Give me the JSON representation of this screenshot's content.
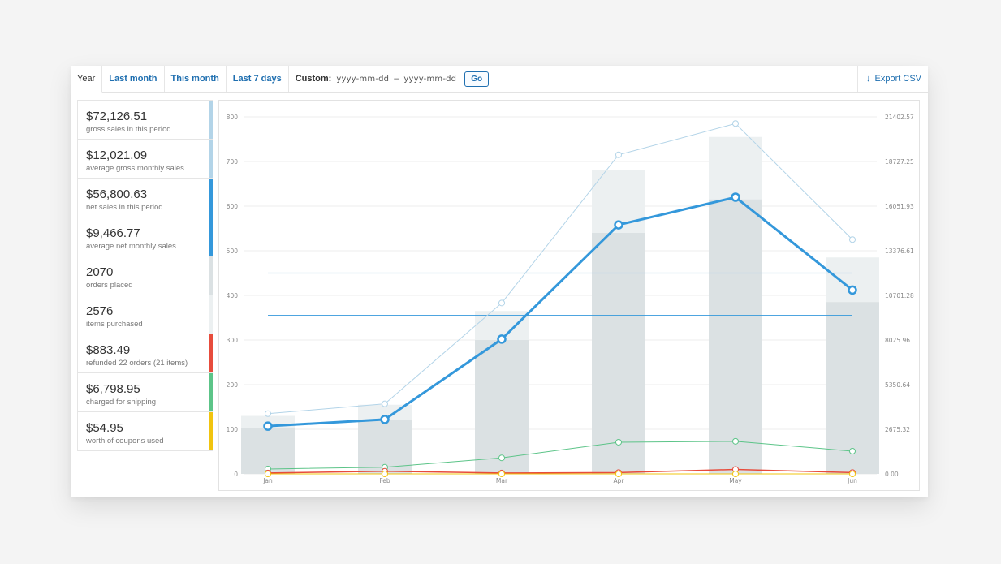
{
  "toolbar": {
    "tabs": [
      {
        "label": "Year",
        "active": true
      },
      {
        "label": "Last month",
        "active": false
      },
      {
        "label": "This month",
        "active": false
      },
      {
        "label": "Last 7 days",
        "active": false
      }
    ],
    "custom_label": "Custom:",
    "start_placeholder": "yyyy-mm-dd",
    "separator": "–",
    "end_placeholder": "yyyy-mm-dd",
    "go_label": "Go",
    "export_label": "Export CSV"
  },
  "legend": [
    {
      "amount": "$72,126.51",
      "desc": "gross sales in this period",
      "color": "#b3d4e8"
    },
    {
      "amount": "$12,021.09",
      "desc": "average gross monthly sales",
      "color": "#b3d4e8"
    },
    {
      "amount": "$56,800.63",
      "desc": "net sales in this period",
      "color": "#3498db"
    },
    {
      "amount": "$9,466.77",
      "desc": "average net monthly sales",
      "color": "#3498db"
    },
    {
      "amount": "2070",
      "desc": "orders placed",
      "color": "#dbe1e3"
    },
    {
      "amount": "2576",
      "desc": "items purchased",
      "color": "#ecf0f1"
    },
    {
      "amount": "$883.49",
      "desc": "refunded 22 orders (21 items)",
      "color": "#e74c3c"
    },
    {
      "amount": "$6,798.95",
      "desc": "charged for shipping",
      "color": "#5cc488"
    },
    {
      "amount": "$54.95",
      "desc": "worth of coupons used",
      "color": "#f1c40f"
    }
  ],
  "chart_data": {
    "type": "bar",
    "categories": [
      "Jan",
      "Feb",
      "Mar",
      "Apr",
      "May",
      "Jun"
    ],
    "y_left_ticks": [
      "0",
      "100",
      "200",
      "300",
      "400",
      "500",
      "600",
      "700",
      "800"
    ],
    "y_right_ticks": [
      "0.00",
      "2675.32",
      "5350.64",
      "8025.96",
      "10701.28",
      "13376.61",
      "16051.93",
      "18727.25",
      "21402.57"
    ],
    "ylim": [
      0,
      800
    ],
    "grid": true,
    "series": [
      {
        "kind": "bar",
        "color": "#ecf0f1",
        "values": [
          130,
          155,
          365,
          680,
          755,
          485
        ]
      },
      {
        "kind": "bar",
        "color": "#dbe1e3",
        "values": [
          102,
          120,
          300,
          540,
          615,
          385
        ]
      },
      {
        "kind": "line",
        "color": "#b3d4e8",
        "width": 1,
        "values": [
          135,
          157,
          383,
          715,
          785,
          525
        ]
      },
      {
        "kind": "line",
        "color": "#3498db",
        "width": 3,
        "values": [
          107,
          122,
          302,
          558,
          620,
          412
        ]
      },
      {
        "kind": "line",
        "color": "#5cc488",
        "width": 1,
        "values": [
          11,
          15,
          36,
          71,
          73,
          51
        ]
      },
      {
        "kind": "line",
        "color": "#e74c3c",
        "width": 1.5,
        "values": [
          2,
          6,
          2,
          3,
          10,
          3
        ]
      },
      {
        "kind": "line",
        "color": "#f1c40f",
        "width": 1,
        "values": [
          0,
          0,
          0,
          0,
          0,
          0
        ]
      },
      {
        "kind": "hline",
        "color": "#b3d4e8",
        "value": 450
      },
      {
        "kind": "hline",
        "color": "#3498db",
        "value": 355
      }
    ]
  }
}
